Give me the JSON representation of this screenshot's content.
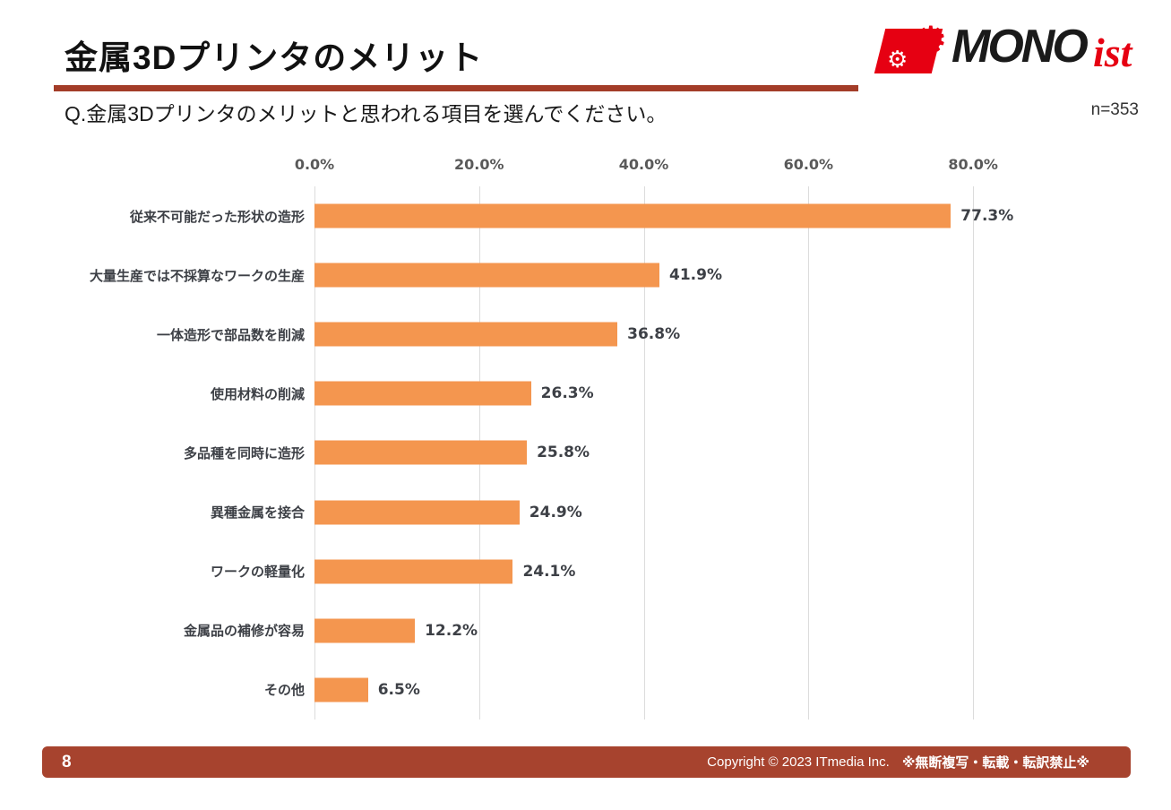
{
  "header": {
    "title": "金属3Dプリンタのメリット",
    "question": "Q.金属3Dプリンタのメリットと思われる項目を選んでください。",
    "sample_size": "n=353",
    "logo": {
      "mono": "MONO",
      "ist": "ist",
      "gear_glyph": "⚙"
    }
  },
  "chart_data": {
    "type": "bar",
    "orientation": "horizontal",
    "title": "金属3Dプリンタのメリット",
    "categories": [
      "従来不可能だった形状の造形",
      "大量生産では不採算なワークの生産",
      "一体造形で部品数を削減",
      "使用材料の削減",
      "多品種を同時に造形",
      "異種金属を接合",
      "ワークの軽量化",
      "金属品の補修が容易",
      "その他"
    ],
    "values": [
      77.3,
      41.9,
      36.8,
      26.3,
      25.8,
      24.9,
      24.1,
      12.2,
      6.5
    ],
    "value_labels": [
      "77.3%",
      "41.9%",
      "36.8%",
      "26.3%",
      "25.8%",
      "24.9%",
      "24.1%",
      "12.2%",
      "6.5%"
    ],
    "axis_ticks": [
      "0.0%",
      "20.0%",
      "40.0%",
      "60.0%",
      "80.0%"
    ],
    "axis_tick_values": [
      0,
      20,
      40,
      60,
      80
    ],
    "xlim": [
      0,
      90
    ],
    "grid": true,
    "legend": false,
    "bar_color": "#F4964F",
    "grid_color": "#DCDCDC",
    "label_color": "#3D4046",
    "axis_label_color": "#595959"
  },
  "footer": {
    "page_number": "8",
    "copyright": "Copyright © 2023 ITmedia Inc.",
    "notice": "※無断複写・転載・転訳禁止※"
  },
  "colors": {
    "accent_rule": "#A33C28",
    "footer_bar": "#A7432E",
    "logo_red": "#E60012"
  }
}
